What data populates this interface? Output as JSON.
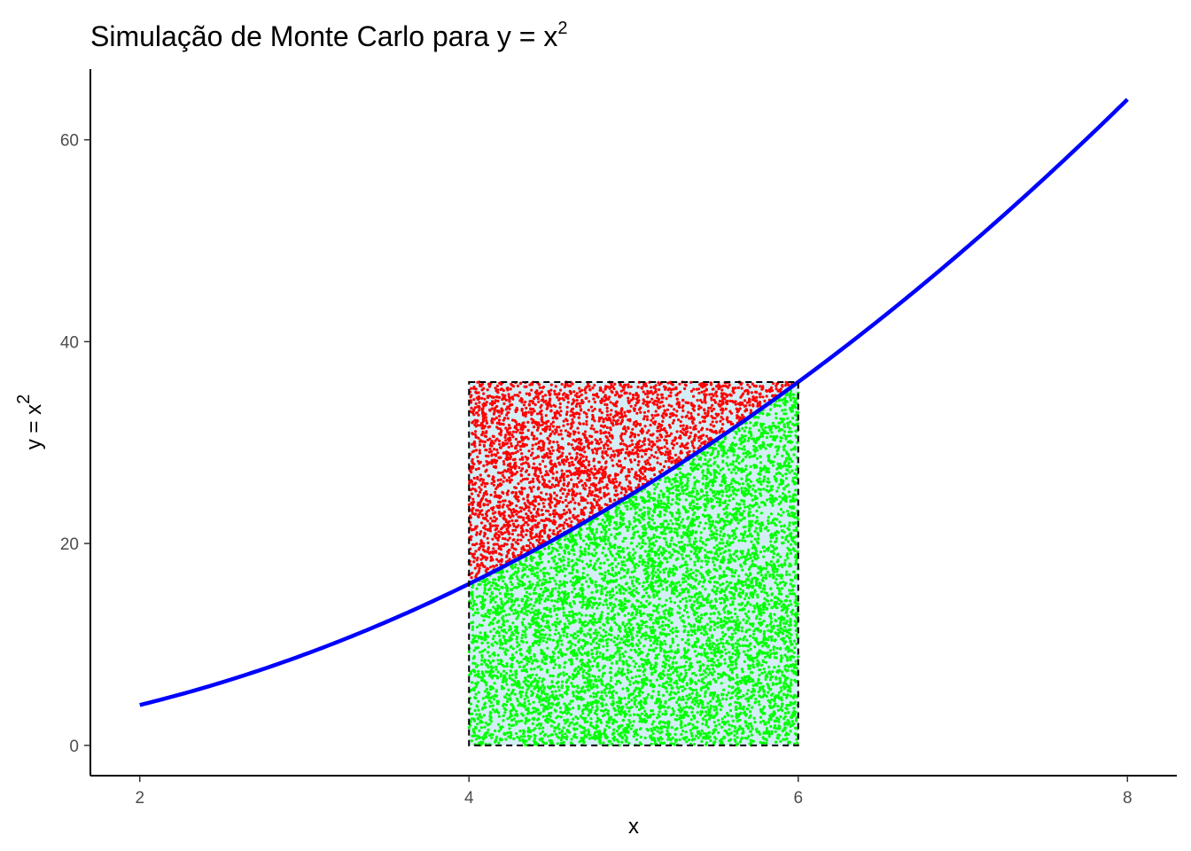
{
  "chart_data": {
    "type": "scatter",
    "title": {
      "prefix": "Simulação de Monte Carlo para ",
      "math_base": "y = x",
      "math_exponent": "2"
    },
    "xlabel": "x",
    "ylabel": {
      "base": "y = x",
      "exponent": "2"
    },
    "x_ticks": [
      2,
      4,
      6,
      8
    ],
    "y_ticks": [
      0,
      20,
      40,
      60
    ],
    "xlim": [
      1.7,
      8.3
    ],
    "ylim": [
      -3.0,
      67.0
    ],
    "grid": false,
    "legend": "none",
    "series": [
      {
        "kind": "line",
        "function": "x^2",
        "x_range": [
          2,
          8
        ],
        "color": "#0000ff"
      },
      {
        "kind": "rect",
        "x_range": [
          4,
          6
        ],
        "y_range": [
          0,
          36
        ],
        "fill": "#d4eef7",
        "stroke": "#000000",
        "dashed": true
      },
      {
        "kind": "points",
        "rule": "y > x^2",
        "color": "#ff0000",
        "approx_count": 3000
      },
      {
        "kind": "points",
        "rule": "y <= x^2",
        "color": "#00ff00",
        "approx_count": 7000
      }
    ]
  }
}
